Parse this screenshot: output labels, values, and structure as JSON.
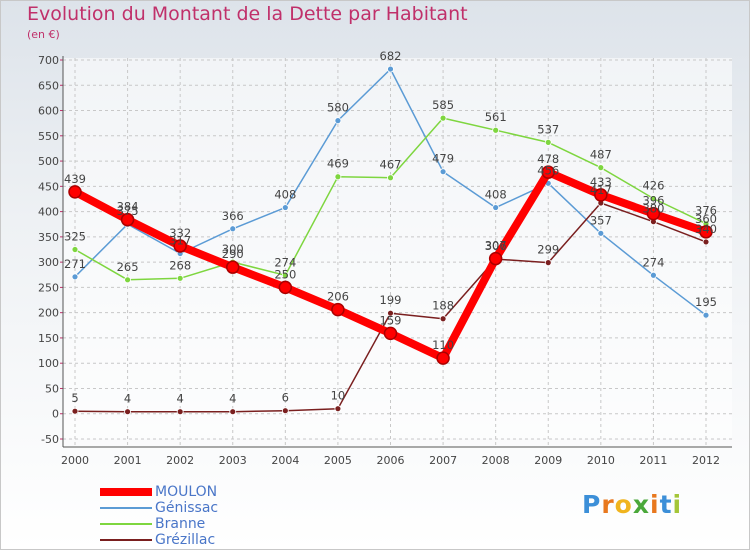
{
  "header": {
    "title": "Evolution du Montant de la Dette par Habitant",
    "unit": "(en €)"
  },
  "logo": {
    "letters": [
      "P",
      "r",
      "o",
      "x",
      "i",
      "t",
      "i"
    ],
    "colors": [
      "#3c8fd8",
      "#e8781e",
      "#f0b41e",
      "#4aa83a",
      "#e8781e",
      "#3c8fd8",
      "#a4c638"
    ]
  },
  "chart_data": {
    "type": "line",
    "x": [
      "2000",
      "2001",
      "2002",
      "2003",
      "2004",
      "2005",
      "2006",
      "2007",
      "2008",
      "2009",
      "2010",
      "2011",
      "2012"
    ],
    "ylim": [
      -50,
      700
    ],
    "yticks": [
      "-50",
      "0",
      "50",
      "100",
      "150",
      "200",
      "250",
      "300",
      "350",
      "400",
      "450",
      "500",
      "550",
      "600",
      "650",
      "700"
    ],
    "grid": true,
    "legend_position": "bottom-left",
    "series": [
      {
        "name": "MOULON",
        "color": "#ff0000",
        "values": [
          439,
          384,
          332,
          290,
          250,
          206,
          159,
          110,
          307,
          478,
          433,
          396,
          360
        ],
        "labels": [
          "439",
          "384",
          "332",
          "290",
          "250",
          "206",
          "159",
          "110",
          "307",
          "478",
          "433",
          "396",
          "360"
        ]
      },
      {
        "name": "Génissac",
        "color": "#5b9bd5",
        "values": [
          271,
          375,
          317,
          366,
          408,
          580,
          682,
          479,
          408,
          456,
          357,
          274,
          195
        ],
        "labels": [
          "271",
          "375",
          "317",
          "366",
          "408",
          "580",
          "682",
          "479",
          "408",
          "456",
          "357",
          "274",
          "195"
        ]
      },
      {
        "name": "Branne",
        "color": "#7ed63f",
        "values": [
          325,
          265,
          268,
          300,
          274,
          469,
          467,
          585,
          561,
          537,
          487,
          426,
          376
        ],
        "labels": [
          "325",
          "265",
          "268",
          "300",
          "274",
          "469",
          "467",
          "585",
          "561",
          "537",
          "487",
          "426",
          "376"
        ]
      },
      {
        "name": "Grézillac",
        "color": "#7a1f1f",
        "values": [
          5,
          4,
          4,
          4,
          6,
          10,
          199,
          188,
          306,
          299,
          417,
          380,
          340
        ],
        "labels": [
          "5",
          "4",
          "4",
          "4",
          "6",
          "10",
          "199",
          "188",
          "306",
          "299",
          "417",
          "380",
          "340"
        ]
      }
    ]
  }
}
